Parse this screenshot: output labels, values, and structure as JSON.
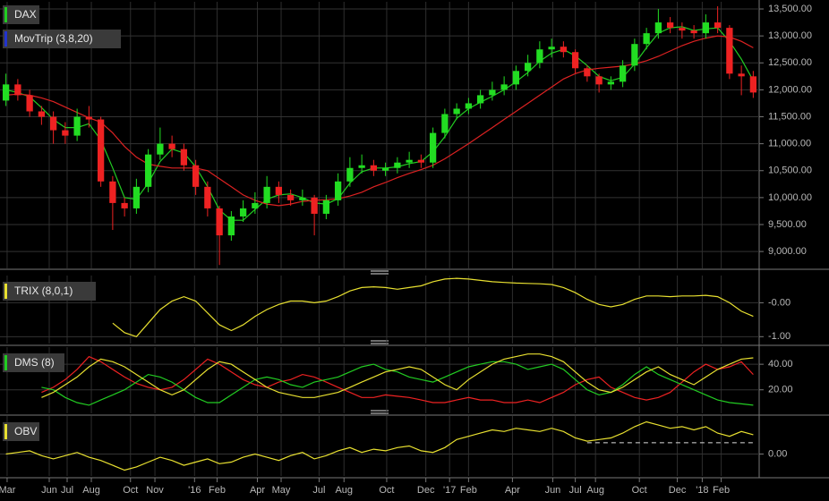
{
  "chart_data": [
    {
      "type": "candlestick",
      "title": "DAX",
      "title_color": "#22cc22",
      "up_color": "#22dd22",
      "down_color": "#ee2222",
      "open": [
        11800,
        12100,
        11900,
        11600,
        11500,
        11250,
        11150,
        11500,
        11450,
        10300,
        9900,
        9800,
        10200,
        10800,
        11000,
        10900,
        10600,
        10200,
        9800,
        9300,
        9650,
        9800,
        9900,
        10200,
        10050,
        9950,
        10000,
        9700,
        9950,
        10300,
        10550,
        10600,
        10500,
        10550,
        10650,
        10700,
        10650,
        11200,
        11550,
        11650,
        11750,
        11900,
        12000,
        12100,
        12350,
        12500,
        12750,
        12800,
        12700,
        12400,
        12250,
        12100,
        12150,
        12450,
        12850,
        13050,
        13250,
        13150,
        13100,
        13050,
        13250,
        13150,
        12300,
        12250
      ],
      "high": [
        12300,
        12200,
        12000,
        11700,
        11600,
        11400,
        11650,
        11700,
        11500,
        10400,
        10000,
        10350,
        10900,
        11300,
        11150,
        11000,
        10700,
        10300,
        9850,
        9750,
        9950,
        10100,
        10400,
        10300,
        10150,
        10150,
        10050,
        10050,
        10450,
        10750,
        10800,
        10700,
        10650,
        10750,
        10850,
        10800,
        11300,
        11650,
        11750,
        11850,
        12000,
        12150,
        12250,
        12450,
        12650,
        12900,
        12950,
        12900,
        12750,
        12450,
        12300,
        12250,
        12550,
        12950,
        13150,
        13500,
        13350,
        13250,
        13200,
        13400,
        13550,
        13200,
        12450,
        12350
      ],
      "low": [
        11700,
        11800,
        11500,
        11350,
        11000,
        11000,
        11050,
        11300,
        10200,
        9400,
        9650,
        9700,
        10100,
        10700,
        10750,
        10500,
        10050,
        9650,
        8750,
        9200,
        9550,
        9700,
        9800,
        9900,
        9850,
        9850,
        9300,
        9600,
        9850,
        10200,
        10450,
        10400,
        10400,
        10450,
        10550,
        10550,
        10550,
        11100,
        11450,
        11550,
        11650,
        11800,
        11900,
        12000,
        12250,
        12400,
        12600,
        12600,
        12300,
        12150,
        11950,
        12000,
        12050,
        12350,
        12750,
        12950,
        13050,
        12950,
        12950,
        12950,
        13050,
        12200,
        11900,
        11850
      ],
      "close": [
        12100,
        11900,
        11600,
        11500,
        11250,
        11150,
        11500,
        11450,
        10300,
        9900,
        9800,
        10200,
        10800,
        11000,
        10900,
        10600,
        10200,
        9800,
        9300,
        9650,
        9800,
        9900,
        10200,
        10050,
        9950,
        10000,
        9700,
        9950,
        10300,
        10550,
        10600,
        10500,
        10550,
        10650,
        10700,
        10650,
        11200,
        11550,
        11650,
        11750,
        11900,
        12000,
        12100,
        12350,
        12500,
        12750,
        12800,
        12700,
        12400,
        12250,
        12100,
        12150,
        12450,
        12850,
        13050,
        13250,
        13150,
        13100,
        13050,
        13250,
        13150,
        12300,
        12250,
        11950
      ],
      "indicator": {
        "name": "MovTrip (3,8,20)",
        "color": "#2233cc",
        "lines": [
          {
            "color": "#22cc22",
            "values": [
              12000,
              11950,
              11870,
              11670,
              11450,
              11300,
              11300,
              11370,
              11070,
              10550,
              10000,
              9970,
              10270,
              10670,
              10900,
              10830,
              10570,
              10200,
              9770,
              9580,
              9580,
              9780,
              9970,
              10050,
              10070,
              10000,
              9900,
              9880,
              9980,
              10270,
              10480,
              10550,
              10550,
              10570,
              10630,
              10670,
              10850,
              11130,
              11470,
              11650,
              11770,
              11880,
              12000,
              12150,
              12320,
              12530,
              12680,
              12750,
              12630,
              12450,
              12250,
              12170,
              12230,
              12480,
              12780,
              13050,
              13150,
              13170,
              13100,
              13130,
              13150,
              12900,
              12570,
              12170
            ]
          },
          {
            "color": "#dd2222",
            "values": [
              11900,
              11920,
              11900,
              11850,
              11780,
              11680,
              11580,
              11480,
              11400,
              11200,
              10950,
              10750,
              10620,
              10580,
              10550,
              10550,
              10550,
              10500,
              10350,
              10200,
              10050,
              9950,
              9880,
              9850,
              9880,
              9930,
              9950,
              9960,
              9980,
              10030,
              10100,
              10200,
              10280,
              10370,
              10450,
              10520,
              10600,
              10720,
              10860,
              11000,
              11150,
              11300,
              11450,
              11600,
              11750,
              11900,
              12050,
              12200,
              12300,
              12370,
              12400,
              12420,
              12440,
              12480,
              12540,
              12620,
              12720,
              12820,
              12900,
              12960,
              13000,
              12980,
              12900,
              12780
            ]
          }
        ]
      },
      "ylim": [
        8720,
        13600
      ],
      "yticks": [
        {
          "value": 9000,
          "label": "9,000.00"
        },
        {
          "value": 9500,
          "label": "9,500.00"
        },
        {
          "value": 10000,
          "label": "10,000.00"
        },
        {
          "value": 10500,
          "label": "10,500.00"
        },
        {
          "value": 11000,
          "label": "11,000.00"
        },
        {
          "value": 11500,
          "label": "11,500.00"
        },
        {
          "value": 12000,
          "label": "12,000.00"
        },
        {
          "value": 12500,
          "label": "12,500.00"
        },
        {
          "value": 13000,
          "label": "13,000.00"
        },
        {
          "value": 13500,
          "label": "13,500.00"
        }
      ],
      "grid": true
    },
    {
      "type": "line",
      "title": "TRIX (8,0,1)",
      "title_color": "#e8e030",
      "series": [
        {
          "color": "#e8e030",
          "values": [
            null,
            null,
            null,
            null,
            null,
            null,
            null,
            null,
            null,
            -0.6,
            -0.88,
            -1.0,
            -0.6,
            -0.2,
            0.05,
            0.18,
            0.05,
            -0.3,
            -0.65,
            -0.82,
            -0.65,
            -0.4,
            -0.2,
            -0.05,
            0.05,
            0.05,
            0.0,
            0.05,
            0.18,
            0.35,
            0.45,
            0.47,
            0.45,
            0.4,
            0.45,
            0.5,
            0.62,
            0.7,
            0.72,
            0.7,
            0.66,
            0.62,
            0.6,
            0.58,
            0.57,
            0.56,
            0.54,
            0.45,
            0.3,
            0.1,
            -0.05,
            -0.12,
            -0.05,
            0.1,
            0.2,
            0.2,
            0.18,
            0.2,
            0.2,
            0.22,
            0.18,
            0.0,
            -0.25,
            -0.4
          ]
        }
      ],
      "ylim": [
        -1.15,
        0.75
      ],
      "yticks": [
        {
          "value": 0,
          "label": "-0.00"
        },
        {
          "value": -1,
          "label": "-1.00"
        }
      ],
      "grid": true
    },
    {
      "type": "line",
      "title": "DMS (8)",
      "title_color": "#22cc22",
      "series": [
        {
          "color": "#ee2222",
          "values": [
            null,
            null,
            null,
            18,
            22,
            28,
            36,
            46,
            42,
            36,
            30,
            25,
            22,
            20,
            22,
            28,
            36,
            44,
            40,
            34,
            28,
            24,
            22,
            26,
            28,
            32,
            30,
            26,
            22,
            18,
            14,
            14,
            16,
            15,
            14,
            12,
            10,
            10,
            12,
            14,
            12,
            12,
            10,
            10,
            12,
            10,
            14,
            18,
            24,
            28,
            30,
            22,
            18,
            14,
            12,
            14,
            18,
            26,
            34,
            40,
            36,
            38,
            42,
            32
          ]
        },
        {
          "color": "#22cc22",
          "values": [
            null,
            null,
            null,
            22,
            20,
            14,
            10,
            8,
            12,
            16,
            20,
            26,
            32,
            30,
            26,
            20,
            14,
            10,
            10,
            16,
            22,
            28,
            30,
            28,
            24,
            22,
            26,
            28,
            30,
            34,
            38,
            40,
            36,
            34,
            30,
            28,
            26,
            30,
            34,
            38,
            40,
            42,
            42,
            40,
            36,
            38,
            40,
            36,
            28,
            20,
            16,
            18,
            24,
            32,
            38,
            32,
            28,
            24,
            20,
            16,
            12,
            10,
            9,
            8
          ]
        },
        {
          "color": "#e8e030",
          "values": [
            null,
            null,
            null,
            14,
            18,
            24,
            30,
            38,
            44,
            42,
            38,
            32,
            26,
            20,
            16,
            20,
            28,
            36,
            42,
            40,
            34,
            28,
            22,
            18,
            16,
            14,
            14,
            16,
            18,
            22,
            26,
            30,
            34,
            36,
            38,
            36,
            30,
            24,
            20,
            28,
            34,
            40,
            44,
            46,
            48,
            48,
            46,
            42,
            34,
            26,
            20,
            18,
            22,
            28,
            34,
            38,
            32,
            28,
            24,
            30,
            36,
            40,
            44,
            45
          ]
        }
      ],
      "ylim": [
        3,
        52
      ],
      "yticks": [
        {
          "value": 40,
          "label": "40.00"
        },
        {
          "value": 20,
          "label": "20.00"
        }
      ],
      "grid": true
    },
    {
      "type": "line",
      "title": "OBV",
      "title_color": "#e8e030",
      "series": [
        {
          "color": "#e8e030",
          "values": [
            0,
            2,
            4,
            -2,
            -6,
            -2,
            2,
            -4,
            -8,
            -14,
            -20,
            -16,
            -10,
            -4,
            -8,
            -14,
            -10,
            -6,
            -12,
            -10,
            -4,
            0,
            -4,
            -8,
            -2,
            2,
            -6,
            -2,
            4,
            8,
            2,
            6,
            4,
            8,
            10,
            4,
            2,
            8,
            18,
            22,
            26,
            30,
            28,
            32,
            30,
            28,
            32,
            28,
            20,
            16,
            18,
            20,
            26,
            34,
            40,
            36,
            32,
            34,
            30,
            34,
            26,
            22,
            28,
            24
          ]
        }
      ],
      "reference": {
        "value": 14,
        "x": [
          49,
          63
        ]
      },
      "ylim": [
        -25,
        45
      ],
      "yticks": [
        {
          "value": 0,
          "label": "0.00"
        }
      ],
      "grid": true,
      "xlim": [
        0,
        64
      ],
      "xticks": [
        {
          "value": 0.6,
          "label": "Mar"
        },
        {
          "value": 4.15,
          "label": "Jun"
        },
        {
          "value": 5.66,
          "label": "Jul"
        },
        {
          "value": 7.7,
          "label": "Aug"
        },
        {
          "value": 11.0,
          "label": "Oct"
        },
        {
          "value": 13.06,
          "label": "Nov"
        },
        {
          "value": 16.4,
          "label": "'16"
        },
        {
          "value": 18.3,
          "label": "Feb"
        },
        {
          "value": 21.7,
          "label": "Apr"
        },
        {
          "value": 23.7,
          "label": "May"
        },
        {
          "value": 26.9,
          "label": "Jul"
        },
        {
          "value": 29.0,
          "label": "Aug"
        },
        {
          "value": 32.6,
          "label": "Oct"
        },
        {
          "value": 35.9,
          "label": "Dec"
        },
        {
          "value": 37.9,
          "label": "'17"
        },
        {
          "value": 39.5,
          "label": "Feb"
        },
        {
          "value": 43.2,
          "label": "Apr"
        },
        {
          "value": 46.6,
          "label": "Jun"
        },
        {
          "value": 48.5,
          "label": "Jul"
        },
        {
          "value": 50.2,
          "label": "Aug"
        },
        {
          "value": 53.9,
          "label": "Oct"
        },
        {
          "value": 57.1,
          "label": "Dec"
        },
        {
          "value": 59.2,
          "label": "'18"
        },
        {
          "value": 60.8,
          "label": "Feb"
        }
      ]
    }
  ]
}
